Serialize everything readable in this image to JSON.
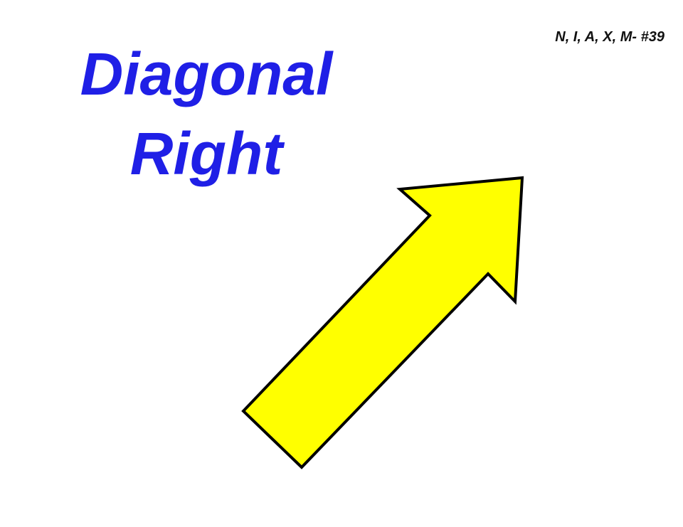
{
  "title": {
    "line1": "Diagonal",
    "line2": "Right",
    "color": "#1f1fe6"
  },
  "ref_label": "N, I, A, X, M- #39",
  "arrow": {
    "direction": "diagonal-up-right",
    "fill": "#ffff00",
    "stroke": "#000000"
  }
}
